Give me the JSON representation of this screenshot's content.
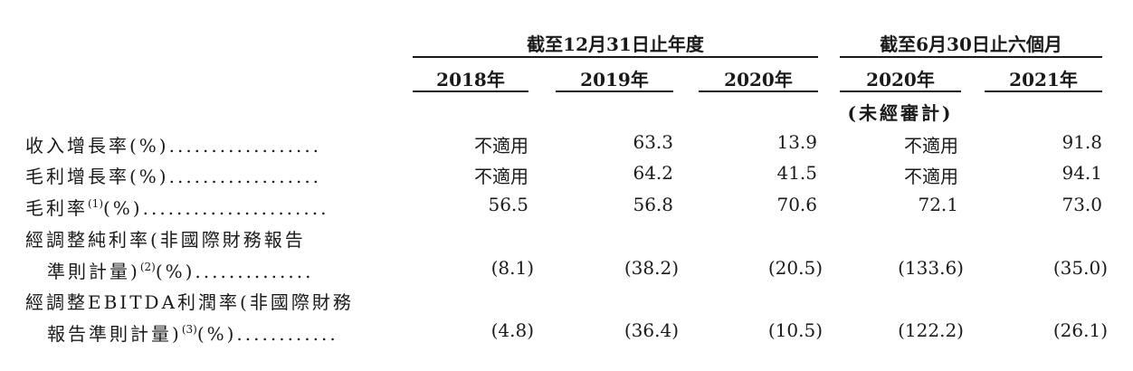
{
  "header": {
    "group1": "截至12月31日止年度",
    "group2": "截至6月30日止六個月",
    "cols": [
      "2018年",
      "2019年",
      "2020年",
      "2020年",
      "2021年"
    ],
    "unaudited": "(未經審計)"
  },
  "rows": [
    {
      "label": "收入增長率(%)",
      "dots": "..................",
      "values": [
        "不適用",
        "63.3",
        "13.9",
        "不適用",
        "91.8"
      ]
    },
    {
      "label": "毛利增長率(%)",
      "dots": "..................",
      "values": [
        "不適用",
        "64.2",
        "41.5",
        "不適用",
        "94.1"
      ]
    },
    {
      "label_pre": "毛利率",
      "sup": "(1)",
      "label_post": "(%)",
      "dots": "......................",
      "values": [
        "56.5",
        "56.8",
        "70.6",
        "72.1",
        "73.0"
      ]
    },
    {
      "label_line1": "經調整純利率(非國際財務報告",
      "label_pre": "準則計量)",
      "sup": "(2)",
      "label_post": "(%)",
      "dots": "..............",
      "values": [
        "(8.1)",
        "(38.2)",
        "(20.5)",
        "(133.6)",
        "(35.0)"
      ]
    },
    {
      "label_line1": "經調整EBITDA利潤率(非國際財務",
      "label_pre": "報告準則計量)",
      "sup": "(3)",
      "label_post": "(%)",
      "dots": "............",
      "values": [
        "(4.8)",
        "(36.4)",
        "(10.5)",
        "(122.2)",
        "(26.1)"
      ]
    }
  ]
}
